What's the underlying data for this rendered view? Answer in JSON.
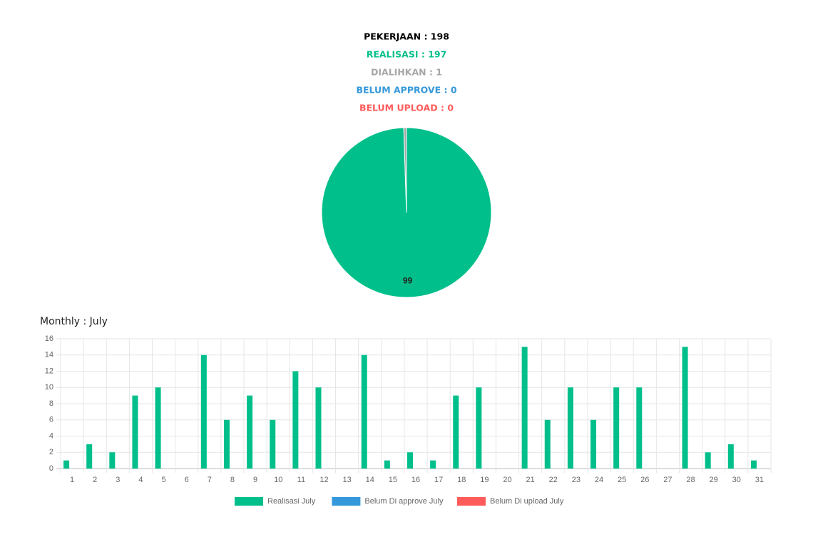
{
  "chart_data": [
    {
      "type": "pie",
      "summary": [
        {
          "text": "PEKERJAAN : 198",
          "color": "#000000"
        },
        {
          "text": "REALISASI : 197",
          "color": "#00bf8a"
        },
        {
          "text": "DIALIHKAN : 1",
          "color": "#a6a6a6"
        },
        {
          "text": "BELUM APPROVE : 0",
          "color": "#3498db"
        },
        {
          "text": "BELUM UPLOAD : 0",
          "color": "#ff5b5b"
        }
      ],
      "values": [
        99.49,
        0.51
      ],
      "value_labels": [
        "99",
        null
      ],
      "colors": [
        "#00bf8a",
        "#a6a6a6"
      ]
    },
    {
      "type": "bar",
      "title": "Monthly : July",
      "categories": [
        "1",
        "2",
        "3",
        "4",
        "5",
        "6",
        "7",
        "8",
        "9",
        "10",
        "11",
        "12",
        "13",
        "14",
        "15",
        "16",
        "17",
        "18",
        "19",
        "20",
        "21",
        "22",
        "23",
        "24",
        "25",
        "26",
        "27",
        "28",
        "29",
        "30",
        "31"
      ],
      "series": [
        {
          "name": "Realisasi July",
          "color": "#00bf8a",
          "values": [
            1,
            3,
            2,
            9,
            10,
            0,
            14,
            6,
            9,
            6,
            12,
            10,
            0,
            14,
            1,
            2,
            1,
            9,
            10,
            0,
            15,
            6,
            10,
            6,
            10,
            10,
            0,
            15,
            2,
            3,
            1
          ]
        },
        {
          "name": "Belum Di approve July",
          "color": "#3498db",
          "values": [
            0,
            0,
            0,
            0,
            0,
            0,
            0,
            0,
            0,
            0,
            0,
            0,
            0,
            0,
            0,
            0,
            0,
            0,
            0,
            0,
            0,
            0,
            0,
            0,
            0,
            0,
            0,
            0,
            0,
            0,
            0
          ]
        },
        {
          "name": "Belum Di upload July",
          "color": "#ff5b5b",
          "values": [
            0,
            0,
            0,
            0,
            0,
            0,
            0,
            0,
            0,
            0,
            0,
            0,
            0,
            0,
            0,
            0,
            0,
            0,
            0,
            0,
            0,
            0,
            0,
            0,
            0,
            0,
            0,
            0,
            0,
            0,
            0
          ]
        }
      ],
      "ylim": [
        0,
        16
      ],
      "yticks": [
        0,
        2,
        4,
        6,
        8,
        10,
        12,
        14,
        16
      ],
      "grid": true,
      "legend": "bottom"
    }
  ]
}
